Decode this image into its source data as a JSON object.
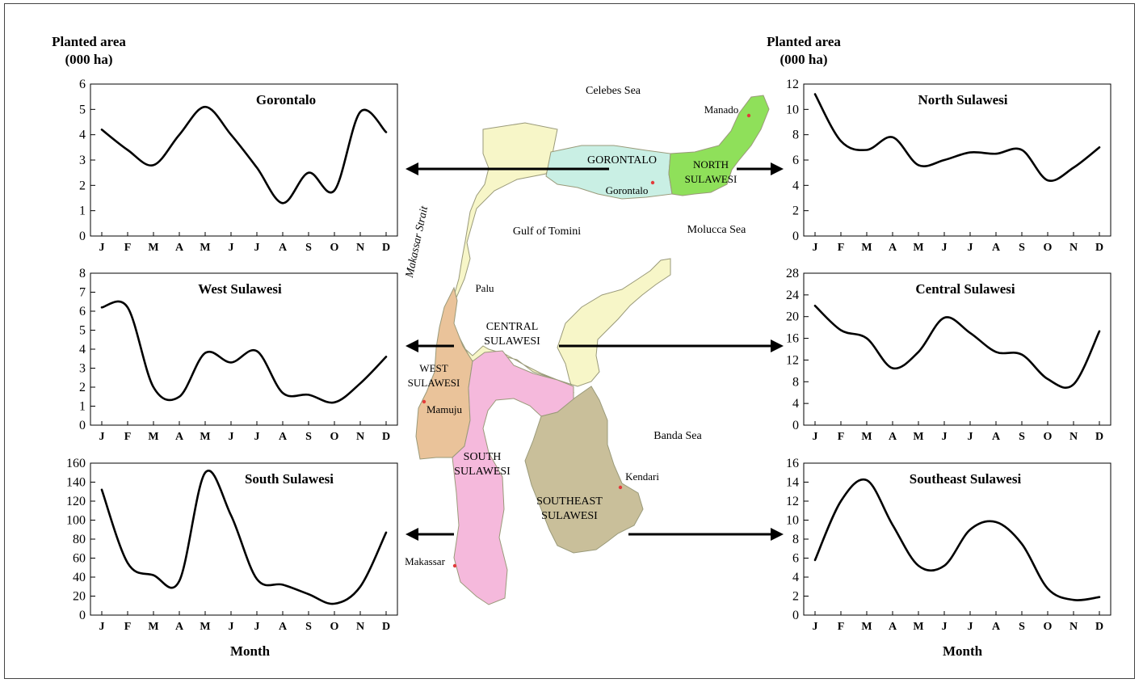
{
  "labels": {
    "y_left_line1": "Planted area",
    "y_left_line2": "(000 ha)",
    "y_right_line1": "Planted area",
    "y_right_line2": "(000 ha)",
    "x_left": "Month",
    "x_right": "Month"
  },
  "chart_data": [
    {
      "type": "line",
      "title": "Gorontalo",
      "categories": [
        "J",
        "F",
        "M",
        "A",
        "M",
        "J",
        "J",
        "A",
        "S",
        "O",
        "N",
        "D"
      ],
      "yticks": [
        0,
        1,
        2,
        3,
        4,
        5,
        6
      ],
      "ylim": [
        0,
        6
      ],
      "values": [
        4.2,
        3.4,
        2.8,
        4.0,
        5.1,
        4.0,
        2.7,
        1.3,
        2.5,
        1.8,
        4.9,
        4.1
      ],
      "grid": false
    },
    {
      "type": "line",
      "title": "North Sulawesi",
      "categories": [
        "J",
        "F",
        "M",
        "A",
        "M",
        "J",
        "J",
        "A",
        "S",
        "O",
        "N",
        "D"
      ],
      "yticks": [
        0,
        2,
        4,
        6,
        8,
        10,
        12
      ],
      "ylim": [
        0,
        12
      ],
      "values": [
        11.2,
        7.5,
        6.8,
        7.8,
        5.6,
        6.0,
        6.6,
        6.5,
        6.8,
        4.4,
        5.4,
        7.0
      ],
      "grid": false
    },
    {
      "type": "line",
      "title": "West Sulawesi",
      "categories": [
        "J",
        "F",
        "M",
        "A",
        "M",
        "J",
        "J",
        "A",
        "S",
        "O",
        "N",
        "D"
      ],
      "yticks": [
        0,
        1,
        2,
        3,
        4,
        5,
        6,
        7,
        8
      ],
      "ylim": [
        0,
        8
      ],
      "values": [
        6.2,
        6.2,
        2.0,
        1.5,
        3.8,
        3.3,
        3.9,
        1.7,
        1.6,
        1.2,
        2.2,
        3.6
      ],
      "grid": false
    },
    {
      "type": "line",
      "title": "Central Sulawesi",
      "categories": [
        "J",
        "F",
        "M",
        "A",
        "M",
        "J",
        "J",
        "A",
        "S",
        "O",
        "N",
        "D"
      ],
      "yticks": [
        0,
        4,
        8,
        12,
        16,
        20,
        24,
        28
      ],
      "ylim": [
        0,
        28
      ],
      "values": [
        22.0,
        17.5,
        16.0,
        10.5,
        13.5,
        19.8,
        17.0,
        13.5,
        13.0,
        8.5,
        7.5,
        17.3
      ],
      "grid": false
    },
    {
      "type": "line",
      "title": "South Sulawesi",
      "categories": [
        "J",
        "F",
        "M",
        "A",
        "M",
        "J",
        "J",
        "A",
        "S",
        "O",
        "N",
        "D"
      ],
      "yticks": [
        0,
        20,
        40,
        60,
        80,
        100,
        120,
        140,
        160
      ],
      "ylim": [
        0,
        160
      ],
      "values": [
        132,
        55,
        42,
        36,
        150,
        105,
        38,
        32,
        22,
        12,
        30,
        87
      ],
      "grid": false
    },
    {
      "type": "line",
      "title": "Southeast Sulawesi",
      "categories": [
        "J",
        "F",
        "M",
        "A",
        "M",
        "J",
        "J",
        "A",
        "S",
        "O",
        "N",
        "D"
      ],
      "yticks": [
        0,
        2,
        4,
        6,
        8,
        10,
        12,
        14,
        16
      ],
      "ylim": [
        0,
        16
      ],
      "values": [
        5.8,
        12.0,
        14.2,
        9.5,
        5.2,
        5.2,
        9.0,
        9.8,
        7.5,
        2.8,
        1.6,
        1.9
      ],
      "grid": false
    }
  ],
  "map": {
    "province_labels": [
      {
        "id": "gorontalo",
        "text": "GORONTALO"
      },
      {
        "id": "north-sulawesi-1",
        "text": "NORTH"
      },
      {
        "id": "north-sulawesi-2",
        "text": "SULAWESI"
      },
      {
        "id": "central-sulawesi-1",
        "text": "CENTRAL"
      },
      {
        "id": "central-sulawesi-2",
        "text": "SULAWESI"
      },
      {
        "id": "west-sulawesi-1",
        "text": "WEST"
      },
      {
        "id": "west-sulawesi-2",
        "text": "SULAWESI"
      },
      {
        "id": "south-sulawesi-1",
        "text": "SOUTH"
      },
      {
        "id": "south-sulawesi-2",
        "text": "SULAWESI"
      },
      {
        "id": "southeast-sulawesi-1",
        "text": "SOUTHEAST"
      },
      {
        "id": "southeast-sulawesi-2",
        "text": "SULAWESI"
      }
    ],
    "seas": [
      {
        "id": "celebes-sea",
        "text": "Celebes Sea"
      },
      {
        "id": "gulf-of-tomini",
        "text": "Gulf of Tomini"
      },
      {
        "id": "molucca-sea",
        "text": "Molucca Sea"
      },
      {
        "id": "makassar-strait",
        "text": "Makassar Strait"
      },
      {
        "id": "banda-sea",
        "text": "Banda Sea"
      }
    ],
    "cities": [
      {
        "id": "manado",
        "text": "Manado"
      },
      {
        "id": "gorontalo-city",
        "text": "Gorontalo"
      },
      {
        "id": "palu",
        "text": "Palu"
      },
      {
        "id": "mamuju",
        "text": "Mamuju"
      },
      {
        "id": "kendari",
        "text": "Kendari"
      },
      {
        "id": "makassar",
        "text": "Makassar"
      }
    ],
    "colors": {
      "north": "#8fe05a",
      "gorontalo": "#c9efe4",
      "central": "#f7f6c8",
      "west": "#eac39a",
      "south": "#f5b9dc",
      "southeast": "#c9bf9a",
      "city_dot": "#e23b3b"
    }
  }
}
